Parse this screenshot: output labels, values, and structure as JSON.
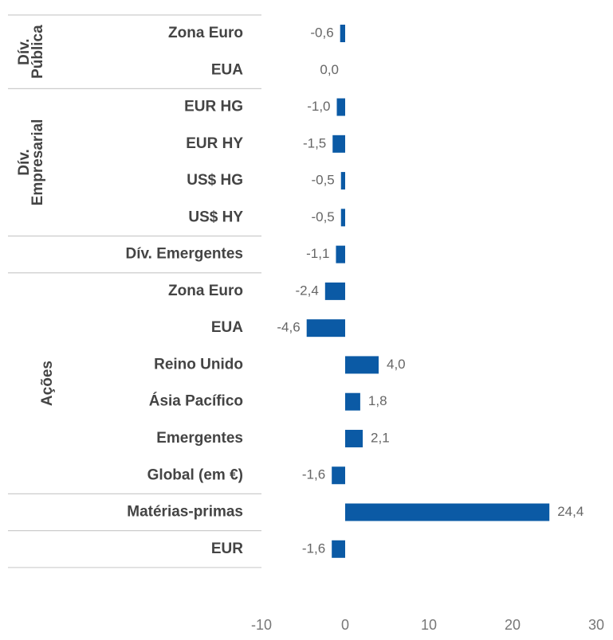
{
  "chart_data": {
    "type": "bar",
    "orientation": "horizontal",
    "color": "#0b5aa5",
    "xlim": [
      -10,
      30
    ],
    "xticks": [
      -10,
      0,
      10,
      20,
      30
    ],
    "groups": [
      {
        "name_lines": [
          "Dív.",
          "Pública"
        ],
        "categories": [
          "Zona Euro",
          "EUA"
        ],
        "values": [
          -0.6,
          0.0
        ],
        "value_labels": [
          "-0,6",
          "0,0"
        ]
      },
      {
        "name_lines": [
          "Dív.",
          "Empresarial"
        ],
        "categories": [
          "EUR HG",
          "EUR HY",
          "US$ HG",
          "US$ HY"
        ],
        "values": [
          -1.0,
          -1.5,
          -0.5,
          -0.5
        ],
        "value_labels": [
          "-1,0",
          "-1,5",
          "-0,5",
          "-0,5"
        ]
      },
      {
        "categories": [
          "Dív. Emergentes"
        ],
        "values": [
          -1.1
        ],
        "value_labels": [
          "-1,1"
        ]
      },
      {
        "name_lines": [
          "Ações"
        ],
        "categories": [
          "Zona Euro",
          "EUA",
          "Reino Unido",
          "Ásia Pacífico",
          "Emergentes",
          "Global (em €)"
        ],
        "values": [
          -2.4,
          -4.6,
          4.0,
          1.8,
          2.1,
          -1.6
        ],
        "value_labels": [
          "-2,4",
          "-4,6",
          "4,0",
          "1,8",
          "2,1",
          "-1,6"
        ]
      },
      {
        "categories": [
          "Matérias-primas"
        ],
        "values": [
          24.4
        ],
        "value_labels": [
          "24,4"
        ]
      },
      {
        "categories": [
          "EUR"
        ],
        "values": [
          -1.6
        ],
        "value_labels": [
          "-1,6"
        ]
      }
    ]
  }
}
